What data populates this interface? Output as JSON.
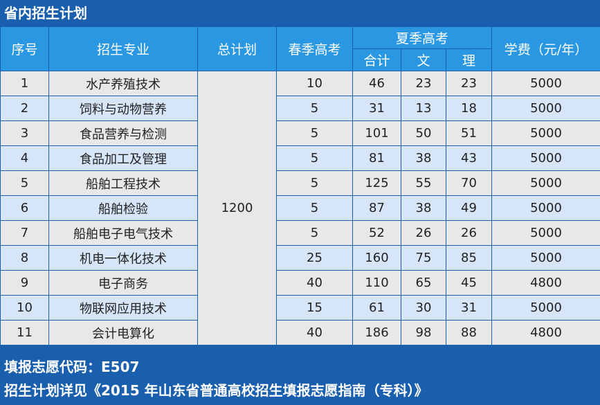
{
  "title": "省内招生计划",
  "headers": {
    "seq": "序号",
    "major": "招生专业",
    "total_plan": "总计划",
    "spring": "春季高考",
    "summer": "夏季高考",
    "summer_total": "合计",
    "summer_arts": "文",
    "summer_science": "理",
    "tuition": "学费（元/年）"
  },
  "total_plan_value": "1200",
  "rows": [
    {
      "seq": "1",
      "major": "水产养殖技术",
      "spring": "10",
      "total": "46",
      "arts": "23",
      "science": "23",
      "tuition": "5000"
    },
    {
      "seq": "2",
      "major": "饲料与动物营养",
      "spring": "5",
      "total": "31",
      "arts": "13",
      "science": "18",
      "tuition": "5000"
    },
    {
      "seq": "3",
      "major": "食品营养与检测",
      "spring": "5",
      "total": "101",
      "arts": "50",
      "science": "51",
      "tuition": "5000"
    },
    {
      "seq": "4",
      "major": "食品加工及管理",
      "spring": "5",
      "total": "81",
      "arts": "38",
      "science": "43",
      "tuition": "5000"
    },
    {
      "seq": "5",
      "major": "船舶工程技术",
      "spring": "5",
      "total": "125",
      "arts": "55",
      "science": "70",
      "tuition": "5000"
    },
    {
      "seq": "6",
      "major": "船舶检验",
      "spring": "5",
      "total": "87",
      "arts": "38",
      "science": "49",
      "tuition": "5000"
    },
    {
      "seq": "7",
      "major": "船舶电子电气技术",
      "spring": "5",
      "total": "52",
      "arts": "26",
      "science": "26",
      "tuition": "5000"
    },
    {
      "seq": "8",
      "major": "机电一体化技术",
      "spring": "25",
      "total": "160",
      "arts": "75",
      "science": "85",
      "tuition": "5000"
    },
    {
      "seq": "9",
      "major": "电子商务",
      "spring": "40",
      "total": "110",
      "arts": "65",
      "science": "45",
      "tuition": "4800"
    },
    {
      "seq": "10",
      "major": "物联网应用技术",
      "spring": "15",
      "total": "61",
      "arts": "30",
      "science": "31",
      "tuition": "5000"
    },
    {
      "seq": "11",
      "major": "会计电算化",
      "spring": "40",
      "total": "186",
      "arts": "98",
      "science": "88",
      "tuition": "4800"
    }
  ],
  "footer": {
    "code_line": "填报志愿代码：E507",
    "guide_line": "招生计划详见《2015 年山东省普通高校招生填报志愿指南（专科）》"
  },
  "colors": {
    "background": "#1a5fae",
    "header_cell": "#2a97e2",
    "row_gray": "#e8e8e8",
    "row_blue": "#d6e5f8"
  }
}
